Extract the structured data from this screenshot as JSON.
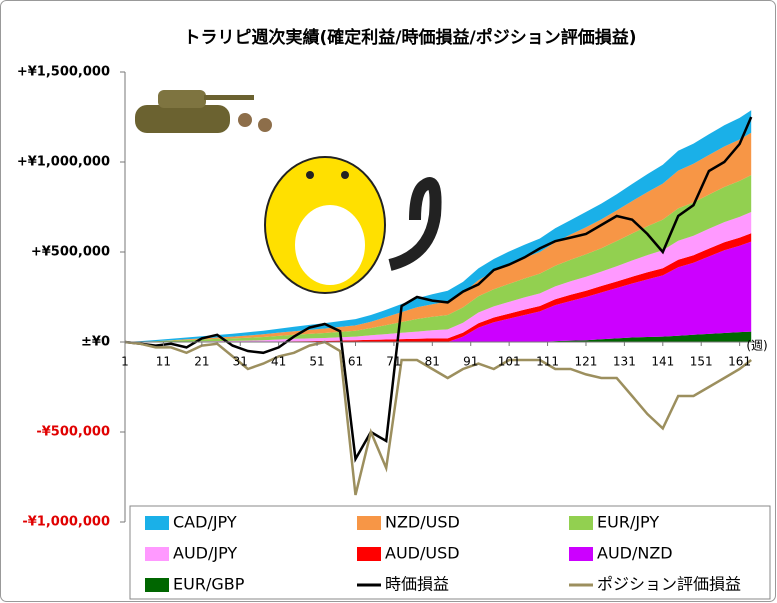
{
  "chart_data": {
    "type": "stacked_area",
    "title": "トラリピ週次実績(確定利益/時価損益/ポジション評価損益)",
    "x_label": "(週)",
    "x": [
      1,
      5,
      9,
      13,
      17,
      21,
      25,
      29,
      33,
      37,
      41,
      45,
      49,
      53,
      57,
      61,
      65,
      69,
      73,
      77,
      81,
      85,
      89,
      93,
      97,
      101,
      105,
      109,
      113,
      117,
      121,
      125,
      129,
      133,
      137,
      141,
      145,
      149,
      153,
      157,
      161,
      164
    ],
    "xlim": [
      1,
      165
    ],
    "xticks": [
      1,
      11,
      21,
      31,
      41,
      51,
      61,
      71,
      81,
      91,
      101,
      111,
      121,
      131,
      141,
      151,
      161
    ],
    "ylim": [
      -1000000,
      1500000
    ],
    "yticks": [
      {
        "value": -1000000,
        "label": "-¥1,000,000"
      },
      {
        "value": -500000,
        "label": "-¥500,000"
      },
      {
        "value": 0,
        "label": "±¥0"
      },
      {
        "value": 500000,
        "label": "+¥500,000"
      },
      {
        "value": 1000000,
        "label": "+¥1,000,000"
      },
      {
        "value": 1500000,
        "label": "+¥1,500,000"
      }
    ],
    "negative_tick_color": "#e00000",
    "grid": false,
    "legend": "bottom",
    "series": [
      {
        "name": "CAD/JPY",
        "color": "#1ab0e8",
        "values": [
          0,
          3000,
          6000,
          8000,
          10000,
          12000,
          14000,
          16000,
          18000,
          20000,
          22000,
          25000,
          28000,
          30000,
          32000,
          35000,
          38000,
          40000,
          45000,
          50000,
          55000,
          60000,
          62000,
          65000,
          68000,
          70000,
          72000,
          75000,
          78000,
          80000,
          85000,
          88000,
          90000,
          95000,
          100000,
          105000,
          110000,
          112000,
          115000,
          118000,
          120000,
          125000
        ]
      },
      {
        "name": "NZD/USD",
        "color": "#f79646",
        "values": [
          0,
          0,
          0,
          2000,
          4000,
          6000,
          8000,
          10000,
          12000,
          15000,
          18000,
          20000,
          22000,
          25000,
          28000,
          30000,
          35000,
          45000,
          55000,
          65000,
          70000,
          75000,
          80000,
          90000,
          100000,
          110000,
          115000,
          120000,
          130000,
          140000,
          150000,
          160000,
          170000,
          180000,
          190000,
          200000,
          210000,
          215000,
          220000,
          225000,
          230000,
          235000
        ]
      },
      {
        "name": "EUR/JPY",
        "color": "#92d050",
        "values": [
          0,
          2000,
          4000,
          6000,
          8000,
          10000,
          12000,
          14000,
          16000,
          18000,
          20000,
          22000,
          25000,
          28000,
          30000,
          32000,
          40000,
          50000,
          60000,
          70000,
          75000,
          80000,
          85000,
          90000,
          95000,
          100000,
          105000,
          110000,
          115000,
          120000,
          125000,
          130000,
          140000,
          150000,
          160000,
          170000,
          180000,
          185000,
          190000,
          195000,
          200000,
          205000
        ]
      },
      {
        "name": "AUD/JPY",
        "color": "#ff99ff",
        "values": [
          0,
          0,
          1000,
          2000,
          3000,
          4000,
          5000,
          6000,
          8000,
          10000,
          12000,
          14000,
          15000,
          16000,
          18000,
          20000,
          25000,
          30000,
          35000,
          40000,
          45000,
          50000,
          55000,
          60000,
          62000,
          65000,
          68000,
          70000,
          72000,
          75000,
          78000,
          80000,
          85000,
          90000,
          95000,
          100000,
          105000,
          108000,
          110000,
          112000,
          115000,
          118000
        ]
      },
      {
        "name": "AUD/USD",
        "color": "#ff0000",
        "values": [
          0,
          0,
          0,
          0,
          0,
          0,
          0,
          0,
          0,
          0,
          2000,
          4000,
          5000,
          6000,
          8000,
          10000,
          12000,
          14000,
          16000,
          18000,
          20000,
          20000,
          22000,
          24000,
          26000,
          28000,
          30000,
          30000,
          32000,
          34000,
          35000,
          36000,
          36000,
          38000,
          40000,
          40000,
          42000,
          42000,
          44000,
          44000,
          45000,
          46000
        ]
      },
      {
        "name": "AUD/NZD",
        "color": "#cc00ff",
        "values": [
          0,
          0,
          0,
          0,
          0,
          0,
          0,
          0,
          0,
          0,
          0,
          0,
          0,
          0,
          0,
          0,
          0,
          0,
          0,
          0,
          0,
          0,
          30000,
          80000,
          110000,
          130000,
          150000,
          170000,
          200000,
          220000,
          240000,
          260000,
          280000,
          300000,
          320000,
          340000,
          380000,
          400000,
          430000,
          460000,
          480000,
          500000
        ]
      },
      {
        "name": "EUR/GBP",
        "color": "#006600",
        "values": [
          0,
          0,
          0,
          0,
          0,
          0,
          0,
          0,
          0,
          0,
          0,
          0,
          0,
          0,
          0,
          0,
          0,
          0,
          0,
          0,
          0,
          0,
          0,
          0,
          0,
          0,
          0,
          0,
          5000,
          8000,
          10000,
          15000,
          20000,
          25000,
          28000,
          30000,
          35000,
          40000,
          45000,
          50000,
          55000,
          58000
        ]
      },
      {
        "name": "時価損益",
        "type": "line",
        "color": "#000000",
        "values": [
          0,
          -10000,
          -20000,
          -10000,
          -30000,
          20000,
          40000,
          -20000,
          -50000,
          -60000,
          -30000,
          30000,
          80000,
          100000,
          60000,
          -650000,
          -500000,
          -550000,
          200000,
          250000,
          230000,
          220000,
          280000,
          320000,
          400000,
          430000,
          470000,
          520000,
          560000,
          580000,
          600000,
          650000,
          700000,
          680000,
          600000,
          500000,
          700000,
          760000,
          950000,
          1000000,
          1100000,
          1250000
        ]
      },
      {
        "name": "ポジション評価損益",
        "type": "line",
        "color": "#9c8f5e",
        "values": [
          0,
          -10000,
          -30000,
          -30000,
          -60000,
          -20000,
          -10000,
          -80000,
          -150000,
          -120000,
          -80000,
          -60000,
          -20000,
          0,
          -50000,
          -850000,
          -500000,
          -700000,
          -100000,
          -100000,
          -150000,
          -200000,
          -150000,
          -120000,
          -150000,
          -100000,
          -100000,
          -100000,
          -150000,
          -150000,
          -180000,
          -200000,
          -200000,
          -300000,
          -400000,
          -480000,
          -300000,
          -300000,
          -250000,
          -200000,
          -150000,
          -100000
        ]
      }
    ]
  }
}
